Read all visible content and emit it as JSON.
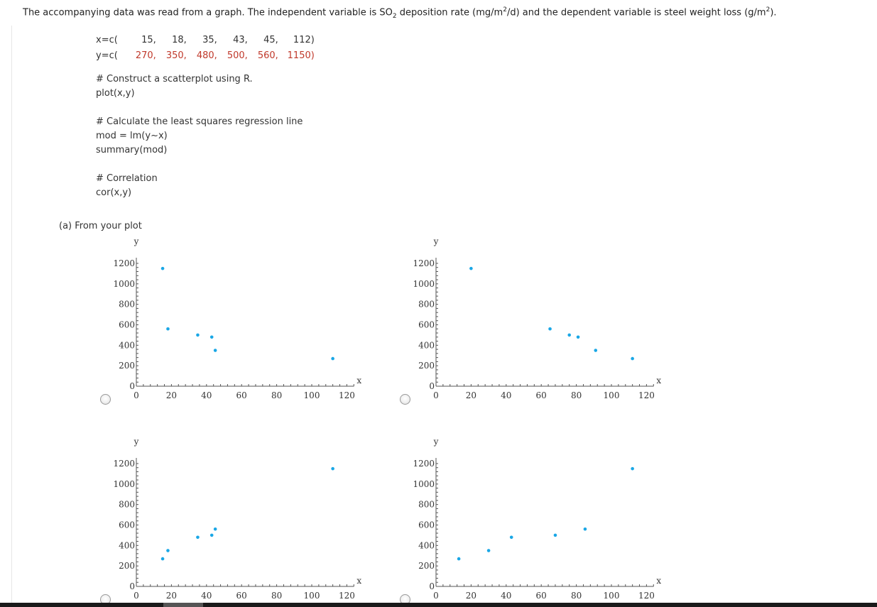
{
  "question": {
    "intro_pre": "The accompanying data was read from a graph. The independent variable is SO",
    "intro_sub": "2",
    "intro_mid1": " deposition rate (mg/m",
    "intro_sup1": "2",
    "intro_mid2": "/d) and the dependent variable is steel weight loss (g/m",
    "intro_sup2": "2",
    "intro_end": ")."
  },
  "code": {
    "x_prefix": "x=c(",
    "x_values": [
      "15,",
      "18,",
      "35,",
      "43,",
      "45,",
      "112)"
    ],
    "y_prefix": "y=c(",
    "y_values": [
      "270,",
      "350,",
      "480,",
      "500,",
      "560,",
      "1150)"
    ],
    "comment_plot": "# Construct a scatterplot using R.",
    "plot_call": "plot(x,y)",
    "comment_lm": "# Calculate the least squares regression line",
    "mod_line": "mod = lm(y~x)",
    "summary_line": "summary(mod)",
    "comment_cor": "# Correlation",
    "cor_line": "cor(x,y)"
  },
  "part_a_label": "(a) From your plot",
  "axes": {
    "x_label": "x",
    "y_label": "y",
    "x_ticks": [
      "0",
      "20",
      "40",
      "60",
      "80",
      "100",
      "120"
    ],
    "y_ticks": [
      "0",
      "200",
      "400",
      "600",
      "800",
      "1000",
      "1200"
    ]
  },
  "colors": {
    "point": "#1aa7e6"
  },
  "chart_data": [
    {
      "type": "scatter",
      "xlabel": "x",
      "ylabel": "y",
      "xlim": [
        0,
        120
      ],
      "ylim": [
        0,
        1200
      ],
      "points": [
        [
          15,
          1150
        ],
        [
          18,
          560
        ],
        [
          35,
          500
        ],
        [
          43,
          480
        ],
        [
          45,
          350
        ],
        [
          112,
          270
        ]
      ]
    },
    {
      "type": "scatter",
      "xlabel": "x",
      "ylabel": "y",
      "xlim": [
        0,
        120
      ],
      "ylim": [
        0,
        1200
      ],
      "points": [
        [
          20,
          1150
        ],
        [
          65,
          560
        ],
        [
          76,
          500
        ],
        [
          81,
          480
        ],
        [
          91,
          350
        ],
        [
          112,
          270
        ]
      ]
    },
    {
      "type": "scatter",
      "xlabel": "x",
      "ylabel": "y",
      "xlim": [
        0,
        120
      ],
      "ylim": [
        0,
        1200
      ],
      "points": [
        [
          15,
          270
        ],
        [
          18,
          350
        ],
        [
          35,
          480
        ],
        [
          43,
          500
        ],
        [
          45,
          560
        ],
        [
          112,
          1150
        ]
      ]
    },
    {
      "type": "scatter",
      "xlabel": "x",
      "ylabel": "y",
      "xlim": [
        0,
        120
      ],
      "ylim": [
        0,
        1200
      ],
      "points": [
        [
          13,
          270
        ],
        [
          30,
          350
        ],
        [
          43,
          480
        ],
        [
          68,
          500
        ],
        [
          85,
          560
        ],
        [
          112,
          1150
        ]
      ]
    }
  ]
}
